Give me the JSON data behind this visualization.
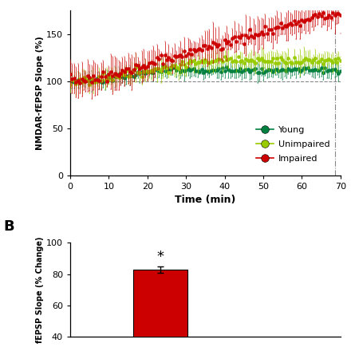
{
  "panel_A": {
    "xlabel": "Time (min)",
    "ylabel": "NMDAR-fEPSP Slope (%)",
    "xlim": [
      0,
      70
    ],
    "ylim": [
      0,
      175
    ],
    "yticks": [
      0,
      50,
      100,
      150
    ],
    "xticks": [
      0,
      10,
      20,
      30,
      40,
      50,
      60,
      70
    ],
    "dashed_hline": 100,
    "dashed_vline": 68.5,
    "young_color": "#008040",
    "unimpaired_color": "#99cc00",
    "impaired_color": "#cc0000",
    "legend_entries": [
      "Young",
      "Unimpaired",
      "Impaired"
    ]
  },
  "panel_B": {
    "bar_value": 83,
    "bar_error": 2.0,
    "bar_color": "#cc0000",
    "ylabel": "fEPSP Slope (% Change)",
    "ylim": [
      40,
      100
    ],
    "yticks": [
      40,
      60,
      80,
      100
    ],
    "annotation": "*",
    "bar_x": 1.5
  },
  "label_B_fontsize": 13
}
